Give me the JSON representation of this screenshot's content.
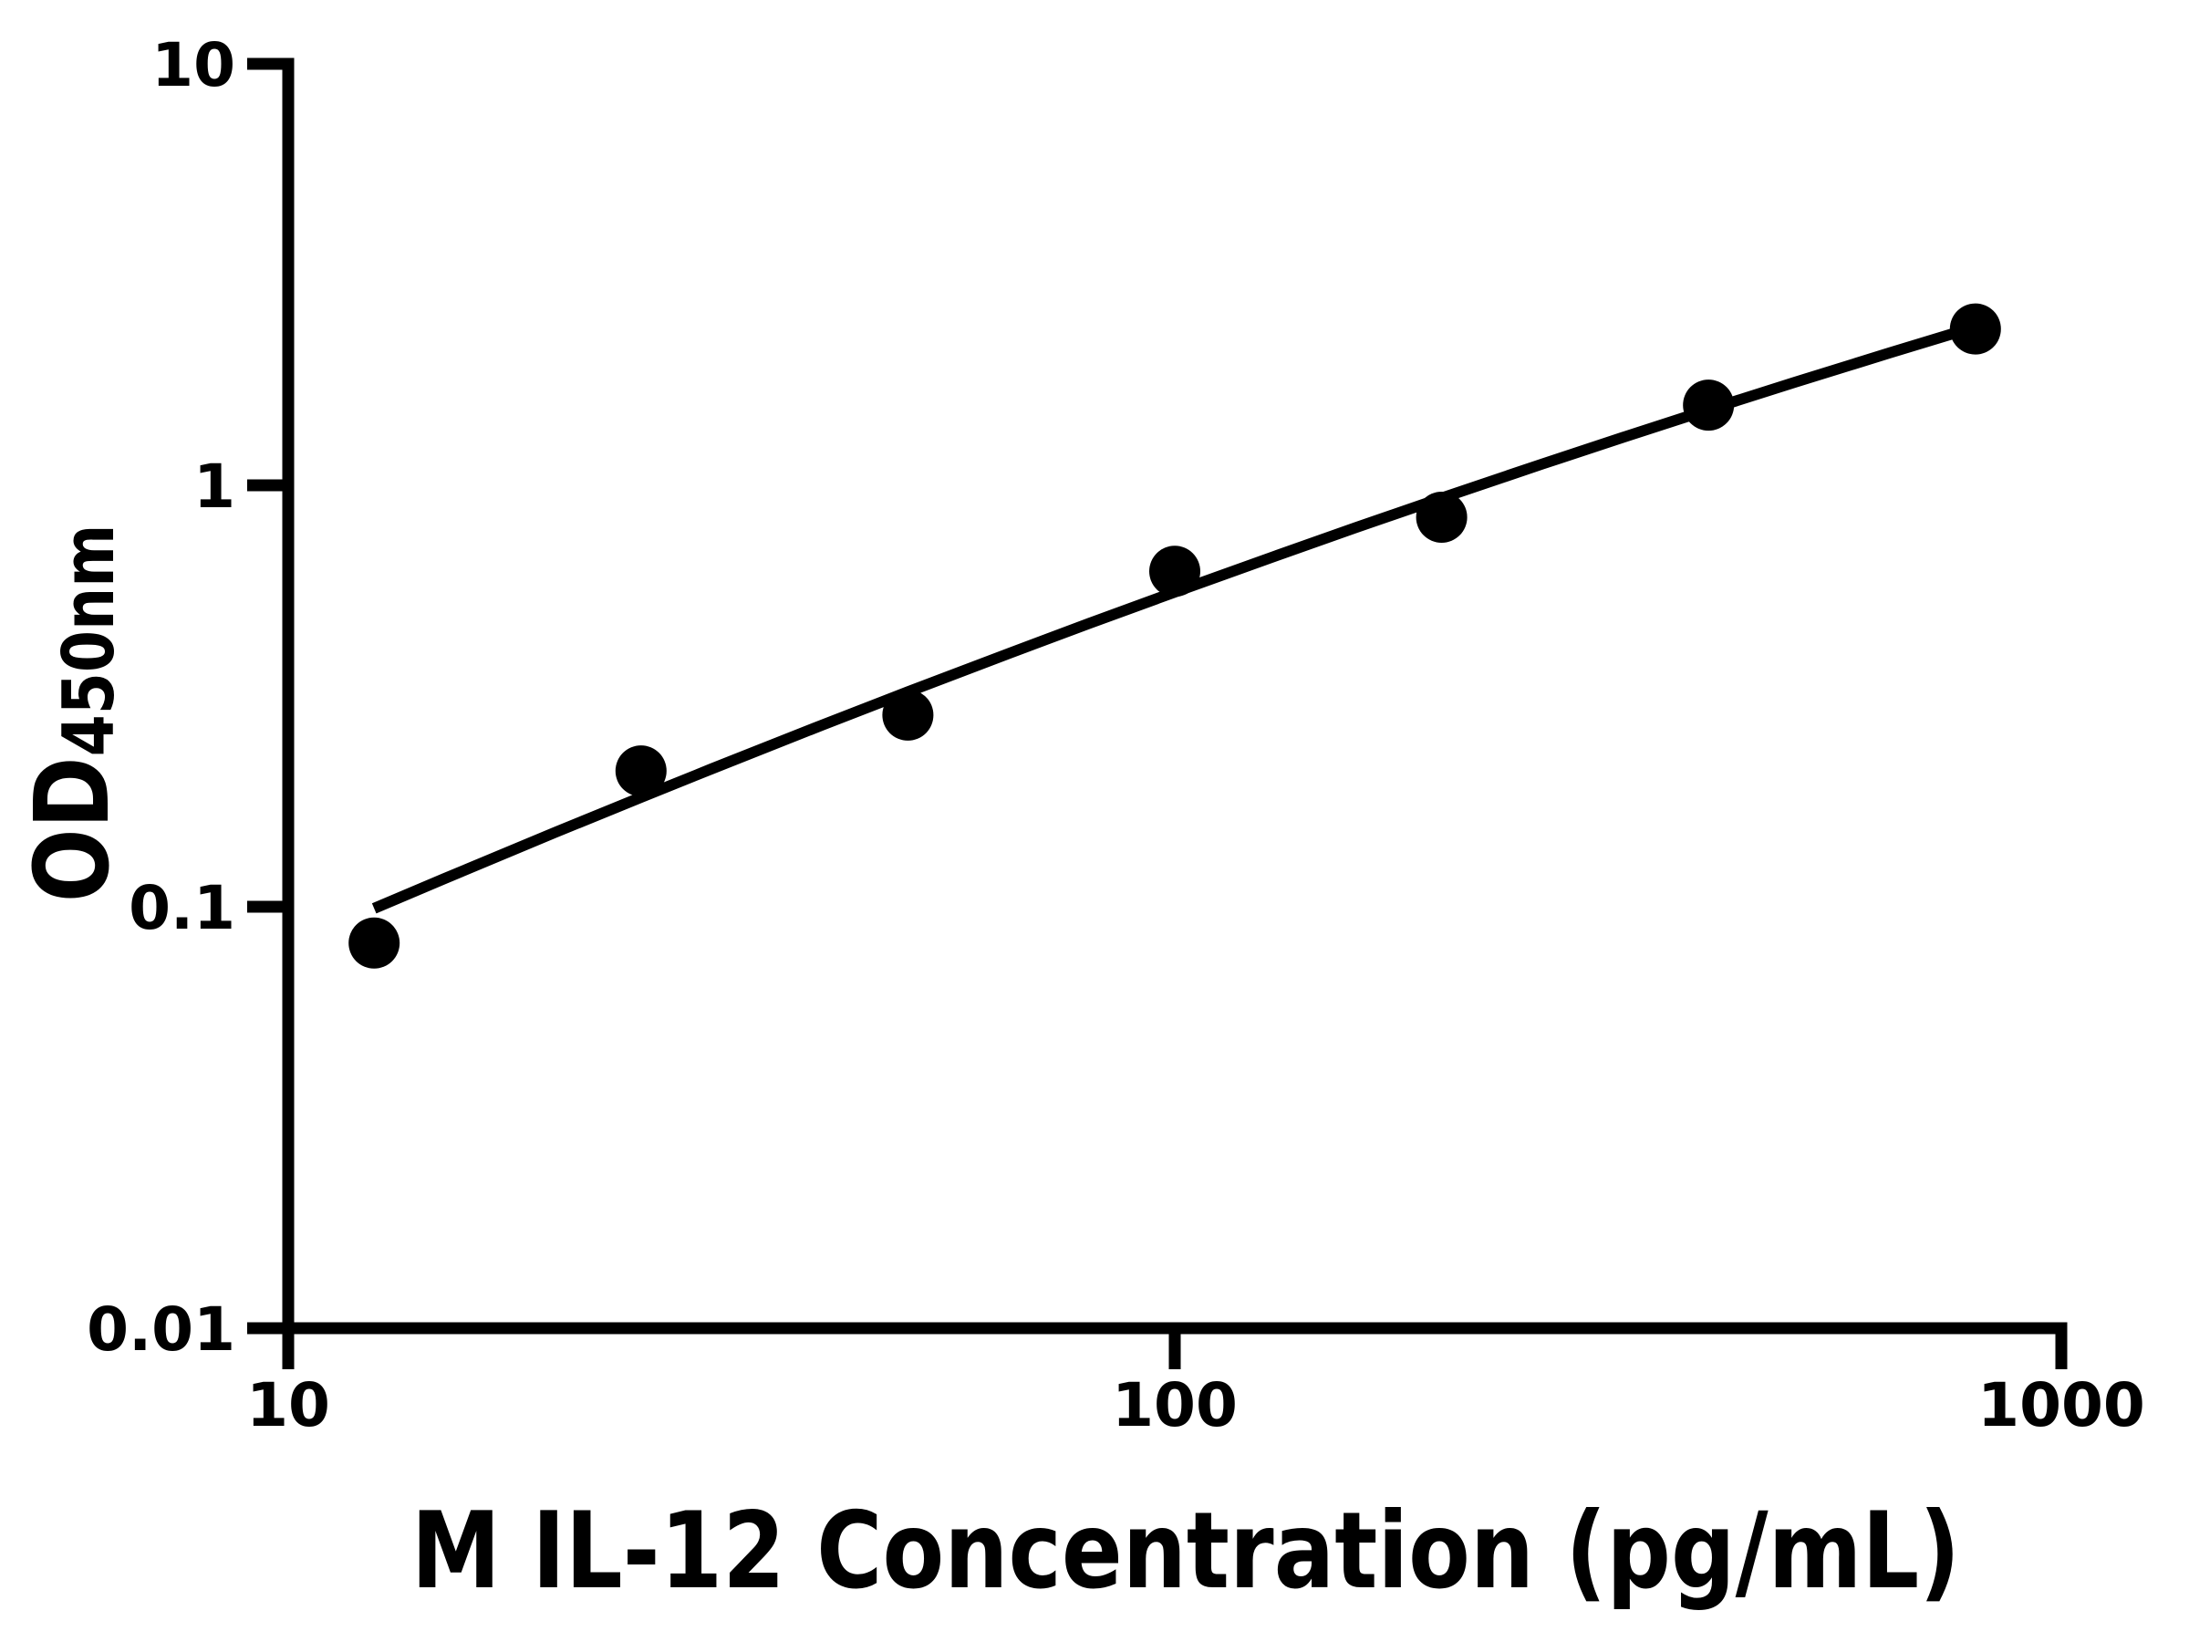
{
  "figure": {
    "kind": "elisa-standard-curve",
    "background_color": "#ffffff",
    "ink_color": "#000000"
  },
  "chart_data": {
    "type": "scatter",
    "title": "",
    "xlabel": "M IL-12 Concentration (pg/mL)",
    "ylabel": "OD450nm",
    "ylabel_main": "OD",
    "ylabel_subscript": "450nm",
    "x_scale": "log10",
    "y_scale": "log10",
    "xlim": [
      10,
      1000
    ],
    "ylim": [
      0.01,
      10
    ],
    "x_ticks": [
      {
        "value": 10,
        "label": "10"
      },
      {
        "value": 100,
        "label": "100"
      },
      {
        "value": 1000,
        "label": "1000"
      }
    ],
    "y_ticks": [
      {
        "value": 10,
        "label": "10"
      },
      {
        "value": 1,
        "label": "1"
      },
      {
        "value": 0.1,
        "label": "0.1"
      },
      {
        "value": 0.01,
        "label": "0.01"
      }
    ],
    "grid": false,
    "legend": null,
    "marker": "filled-circle",
    "series": [
      {
        "name": "standard-points",
        "kind": "scatter",
        "color": "#000000",
        "points": [
          [
            12.5,
            0.082
          ],
          [
            25,
            0.21
          ],
          [
            50,
            0.285
          ],
          [
            100,
            0.625
          ],
          [
            200,
            0.84
          ],
          [
            400,
            1.55
          ],
          [
            800,
            2.35
          ]
        ]
      },
      {
        "name": "fit-curve",
        "kind": "line",
        "color": "#000000",
        "points": [
          [
            12.5,
            0.0991
          ],
          [
            15,
            0.1166
          ],
          [
            20,
            0.1501
          ],
          [
            25,
            0.1818
          ],
          [
            30,
            0.2122
          ],
          [
            40,
            0.2697
          ],
          [
            50,
            0.3236
          ],
          [
            65,
            0.3991
          ],
          [
            80,
            0.4699
          ],
          [
            100,
            0.558
          ],
          [
            130,
            0.68
          ],
          [
            160,
            0.7935
          ],
          [
            200,
            0.9329
          ],
          [
            260,
            1.1244
          ],
          [
            320,
            1.2985
          ],
          [
            400,
            1.5119
          ],
          [
            500,
            1.7547
          ],
          [
            640,
            2.0608
          ],
          [
            800,
            2.377
          ]
        ]
      }
    ]
  }
}
